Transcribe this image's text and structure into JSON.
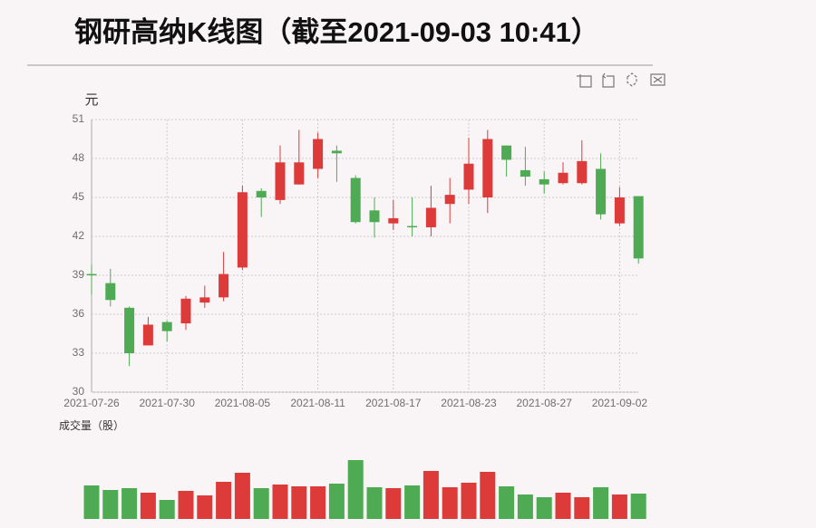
{
  "chart_data": [
    {
      "type": "candlestick",
      "title": "钢研高纳K线图（截至2021-09-03 10:41）",
      "ylabel": "元",
      "categories": [
        "2021-07-26",
        null,
        null,
        null,
        "2021-07-30",
        null,
        null,
        null,
        "2021-08-05",
        null,
        null,
        null,
        "2021-08-11",
        null,
        null,
        null,
        "2021-08-17",
        null,
        null,
        null,
        "2021-08-23",
        null,
        null,
        null,
        "2021-08-27",
        null,
        null,
        null,
        "2021-09-02",
        null
      ],
      "open": [
        39.1,
        38.4,
        36.5,
        33.6,
        35.4,
        35.3,
        36.9,
        37.3,
        39.6,
        45.5,
        44.8,
        46.0,
        47.2,
        48.6,
        46.5,
        44.0,
        43.0,
        42.8,
        42.7,
        44.5,
        45.6,
        45.0,
        49.0,
        47.1,
        46.4,
        46.1,
        46.1,
        47.2,
        43.0,
        45.1
      ],
      "close": [
        39.0,
        37.1,
        33.0,
        35.2,
        34.7,
        37.2,
        37.3,
        39.1,
        45.4,
        45.0,
        47.7,
        47.7,
        49.5,
        48.4,
        43.1,
        43.1,
        43.4,
        42.7,
        44.2,
        45.2,
        47.6,
        49.5,
        47.9,
        46.6,
        46.0,
        46.9,
        47.8,
        43.7,
        45.0,
        40.3
      ],
      "high": [
        39.8,
        39.5,
        36.6,
        35.8,
        35.5,
        37.4,
        38.2,
        40.8,
        45.9,
        45.7,
        49.0,
        50.2,
        50.0,
        49.0,
        46.7,
        45.0,
        44.8,
        45.0,
        45.9,
        46.5,
        49.6,
        50.2,
        49.0,
        48.9,
        47.0,
        47.7,
        49.4,
        48.4,
        45.8,
        45.1
      ],
      "low": [
        37.5,
        36.6,
        32.0,
        33.6,
        33.9,
        34.8,
        36.5,
        37.0,
        39.4,
        43.5,
        44.5,
        46.0,
        46.5,
        46.2,
        43.0,
        41.9,
        42.5,
        42.0,
        42.0,
        43.0,
        44.5,
        43.8,
        46.6,
        45.9,
        45.3,
        46.0,
        46.0,
        43.3,
        42.8,
        39.9
      ],
      "up_color": "#dd3b3a",
      "down_color": "#4eab53",
      "ylim": [
        30,
        51
      ],
      "yticks": [
        30,
        33,
        36,
        39,
        42,
        45,
        48,
        51
      ],
      "grid": true
    },
    {
      "type": "bar",
      "title": "成交量（股）",
      "values": [
        37,
        32,
        34,
        29,
        21,
        31,
        26,
        41,
        51,
        34,
        38,
        36,
        36,
        39,
        65,
        35,
        34,
        37,
        53,
        35,
        40,
        52,
        36,
        27,
        24,
        29,
        24,
        35,
        27,
        28
      ]
    }
  ]
}
